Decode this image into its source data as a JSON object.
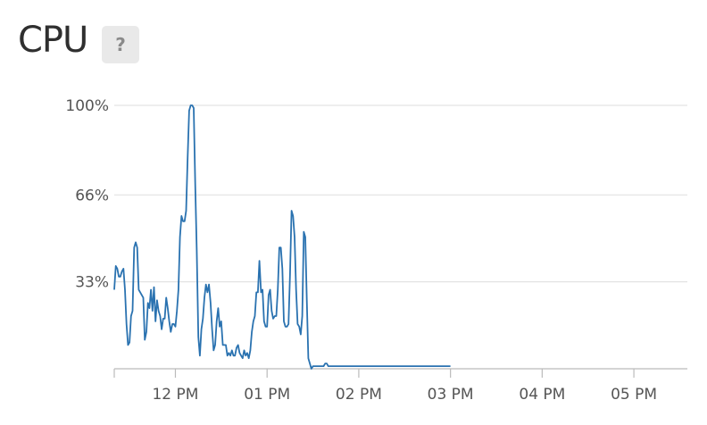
{
  "title": "CPU",
  "help_label": "?",
  "colors": {
    "line": "#2a72b0",
    "grid": "#e3e3e3",
    "axis": "#bbbbbb"
  },
  "chart_data": {
    "type": "line",
    "title": "CPU",
    "ylim": [
      0,
      100
    ],
    "y_ticks": [
      {
        "value": 100,
        "label": "100%"
      },
      {
        "value": 66,
        "label": "66%"
      },
      {
        "value": 33,
        "label": "33%"
      }
    ],
    "x_range": [
      "11:20",
      "17:35"
    ],
    "x_ticks": [
      {
        "time": "12:00",
        "label": "12 PM"
      },
      {
        "time": "13:00",
        "label": "01 PM"
      },
      {
        "time": "14:00",
        "label": "02 PM"
      },
      {
        "time": "15:00",
        "label": "03 PM"
      },
      {
        "time": "16:00",
        "label": "04 PM"
      },
      {
        "time": "17:00",
        "label": "05 PM"
      }
    ],
    "grid": true,
    "series": [
      {
        "points": [
          [
            "11:20",
            30
          ],
          [
            "11:21",
            39
          ],
          [
            "11:22",
            38
          ],
          [
            "11:23",
            35
          ],
          [
            "11:24",
            35
          ],
          [
            "11:25",
            37
          ],
          [
            "11:26",
            38
          ],
          [
            "11:27",
            30
          ],
          [
            "11:28",
            17
          ],
          [
            "11:29",
            9
          ],
          [
            "11:30",
            10
          ],
          [
            "11:31",
            20
          ],
          [
            "11:32",
            22
          ],
          [
            "11:33",
            46
          ],
          [
            "11:34",
            48
          ],
          [
            "11:35",
            46
          ],
          [
            "11:36",
            30
          ],
          [
            "11:37",
            29
          ],
          [
            "11:38",
            28
          ],
          [
            "11:39",
            27
          ],
          [
            "11:40",
            11
          ],
          [
            "11:41",
            14
          ],
          [
            "11:42",
            25
          ],
          [
            "11:43",
            23
          ],
          [
            "11:44",
            30
          ],
          [
            "11:45",
            22
          ],
          [
            "11:46",
            31
          ],
          [
            "11:47",
            18
          ],
          [
            "11:48",
            26
          ],
          [
            "11:49",
            22
          ],
          [
            "11:50",
            20
          ],
          [
            "11:51",
            15
          ],
          [
            "11:52",
            19
          ],
          [
            "11:53",
            19
          ],
          [
            "11:54",
            27
          ],
          [
            "11:55",
            23
          ],
          [
            "11:56",
            18
          ],
          [
            "11:57",
            14
          ],
          [
            "11:58",
            17
          ],
          [
            "11:59",
            17
          ],
          [
            "12:00",
            16
          ],
          [
            "12:01",
            22
          ],
          [
            "12:02",
            30
          ],
          [
            "12:03",
            50
          ],
          [
            "12:04",
            58
          ],
          [
            "12:05",
            56
          ],
          [
            "12:06",
            56
          ],
          [
            "12:07",
            60
          ],
          [
            "12:08",
            80
          ],
          [
            "12:09",
            98
          ],
          [
            "12:10",
            100
          ],
          [
            "12:11",
            100
          ],
          [
            "12:12",
            99
          ],
          [
            "12:13",
            70
          ],
          [
            "12:14",
            45
          ],
          [
            "12:15",
            12
          ],
          [
            "12:16",
            5
          ],
          [
            "12:17",
            15
          ],
          [
            "12:18",
            19
          ],
          [
            "12:19",
            27
          ],
          [
            "12:20",
            32
          ],
          [
            "12:21",
            29
          ],
          [
            "12:22",
            32
          ],
          [
            "12:23",
            25
          ],
          [
            "12:24",
            15
          ],
          [
            "12:25",
            7
          ],
          [
            "12:26",
            9
          ],
          [
            "12:27",
            18
          ],
          [
            "12:28",
            23
          ],
          [
            "12:29",
            16
          ],
          [
            "12:30",
            18
          ],
          [
            "12:31",
            9
          ],
          [
            "12:32",
            9
          ],
          [
            "12:33",
            9
          ],
          [
            "12:34",
            5
          ],
          [
            "12:35",
            6
          ],
          [
            "12:36",
            5
          ],
          [
            "12:37",
            7
          ],
          [
            "12:38",
            5
          ],
          [
            "12:39",
            5
          ],
          [
            "12:40",
            8
          ],
          [
            "12:41",
            9
          ],
          [
            "12:42",
            6
          ],
          [
            "12:43",
            5
          ],
          [
            "12:44",
            4
          ],
          [
            "12:45",
            7
          ],
          [
            "12:46",
            5
          ],
          [
            "12:47",
            6
          ],
          [
            "12:48",
            4
          ],
          [
            "12:49",
            7
          ],
          [
            "12:50",
            14
          ],
          [
            "12:51",
            18
          ],
          [
            "12:52",
            20
          ],
          [
            "12:53",
            29
          ],
          [
            "12:54",
            29
          ],
          [
            "12:55",
            41
          ],
          [
            "12:56",
            29
          ],
          [
            "12:57",
            30
          ],
          [
            "12:58",
            18
          ],
          [
            "12:59",
            16
          ],
          [
            "13:00",
            16
          ],
          [
            "13:01",
            28
          ],
          [
            "13:02",
            30
          ],
          [
            "13:03",
            22
          ],
          [
            "13:04",
            19
          ],
          [
            "13:05",
            20
          ],
          [
            "13:06",
            20
          ],
          [
            "13:07",
            30
          ],
          [
            "13:08",
            46
          ],
          [
            "13:09",
            46
          ],
          [
            "13:10",
            38
          ],
          [
            "13:11",
            18
          ],
          [
            "13:12",
            16
          ],
          [
            "13:13",
            16
          ],
          [
            "13:14",
            17
          ],
          [
            "13:15",
            36
          ],
          [
            "13:16",
            60
          ],
          [
            "13:17",
            58
          ],
          [
            "13:18",
            50
          ],
          [
            "13:19",
            30
          ],
          [
            "13:20",
            17
          ],
          [
            "13:21",
            16
          ],
          [
            "13:22",
            13
          ],
          [
            "13:23",
            20
          ],
          [
            "13:24",
            52
          ],
          [
            "13:25",
            50
          ],
          [
            "13:26",
            26
          ],
          [
            "13:27",
            4
          ],
          [
            "13:28",
            2
          ],
          [
            "13:29",
            0
          ],
          [
            "13:30",
            1
          ],
          [
            "13:31",
            1
          ],
          [
            "13:32",
            1
          ],
          [
            "13:33",
            1
          ],
          [
            "13:34",
            1
          ],
          [
            "13:35",
            1
          ],
          [
            "13:36",
            1
          ],
          [
            "13:37",
            1
          ],
          [
            "13:38",
            2
          ],
          [
            "13:39",
            2
          ],
          [
            "13:40",
            1
          ],
          [
            "13:41",
            1
          ],
          [
            "13:42",
            1
          ],
          [
            "13:43",
            1
          ],
          [
            "13:44",
            1
          ],
          [
            "13:45",
            1
          ],
          [
            "13:46",
            1
          ],
          [
            "13:47",
            1
          ],
          [
            "13:48",
            1
          ],
          [
            "13:49",
            1
          ],
          [
            "13:50",
            1
          ],
          [
            "13:51",
            1
          ],
          [
            "13:52",
            1
          ],
          [
            "13:53",
            1
          ],
          [
            "13:54",
            1
          ],
          [
            "13:55",
            1
          ],
          [
            "13:56",
            1
          ],
          [
            "13:57",
            1
          ],
          [
            "13:58",
            1
          ],
          [
            "13:59",
            1
          ],
          [
            "14:00",
            1
          ],
          [
            "14:01",
            1
          ],
          [
            "14:02",
            1
          ],
          [
            "14:03",
            1
          ],
          [
            "14:04",
            1
          ],
          [
            "14:05",
            1
          ],
          [
            "14:06",
            1
          ],
          [
            "14:07",
            1
          ],
          [
            "14:08",
            1
          ],
          [
            "14:09",
            1
          ],
          [
            "14:10",
            1
          ],
          [
            "14:11",
            1
          ],
          [
            "14:12",
            1
          ],
          [
            "14:13",
            1
          ],
          [
            "14:14",
            1
          ],
          [
            "14:15",
            1
          ],
          [
            "14:16",
            1
          ],
          [
            "14:17",
            1
          ],
          [
            "14:18",
            1
          ],
          [
            "14:19",
            1
          ],
          [
            "14:20",
            1
          ],
          [
            "14:21",
            1
          ],
          [
            "14:22",
            1
          ],
          [
            "14:23",
            1
          ],
          [
            "14:24",
            1
          ],
          [
            "14:25",
            1
          ],
          [
            "14:26",
            1
          ],
          [
            "14:27",
            1
          ],
          [
            "14:28",
            1
          ],
          [
            "14:29",
            1
          ],
          [
            "14:30",
            1
          ],
          [
            "14:31",
            1
          ],
          [
            "14:32",
            1
          ],
          [
            "14:33",
            1
          ],
          [
            "14:34",
            1
          ],
          [
            "14:35",
            1
          ],
          [
            "14:36",
            1
          ],
          [
            "14:37",
            1
          ],
          [
            "14:38",
            1
          ],
          [
            "14:39",
            1
          ],
          [
            "14:40",
            1
          ],
          [
            "14:41",
            1
          ],
          [
            "14:42",
            1
          ],
          [
            "14:43",
            1
          ],
          [
            "14:44",
            1
          ],
          [
            "14:45",
            1
          ],
          [
            "14:46",
            1
          ],
          [
            "14:47",
            1
          ],
          [
            "14:48",
            1
          ],
          [
            "14:49",
            1
          ],
          [
            "14:50",
            1
          ],
          [
            "14:51",
            1
          ],
          [
            "14:52",
            1
          ],
          [
            "14:53",
            1
          ],
          [
            "14:54",
            1
          ],
          [
            "14:55",
            1
          ],
          [
            "14:56",
            1
          ],
          [
            "14:57",
            1
          ],
          [
            "14:58",
            1
          ],
          [
            "14:59",
            1
          ],
          [
            "15:00",
            1
          ]
        ]
      }
    ]
  }
}
